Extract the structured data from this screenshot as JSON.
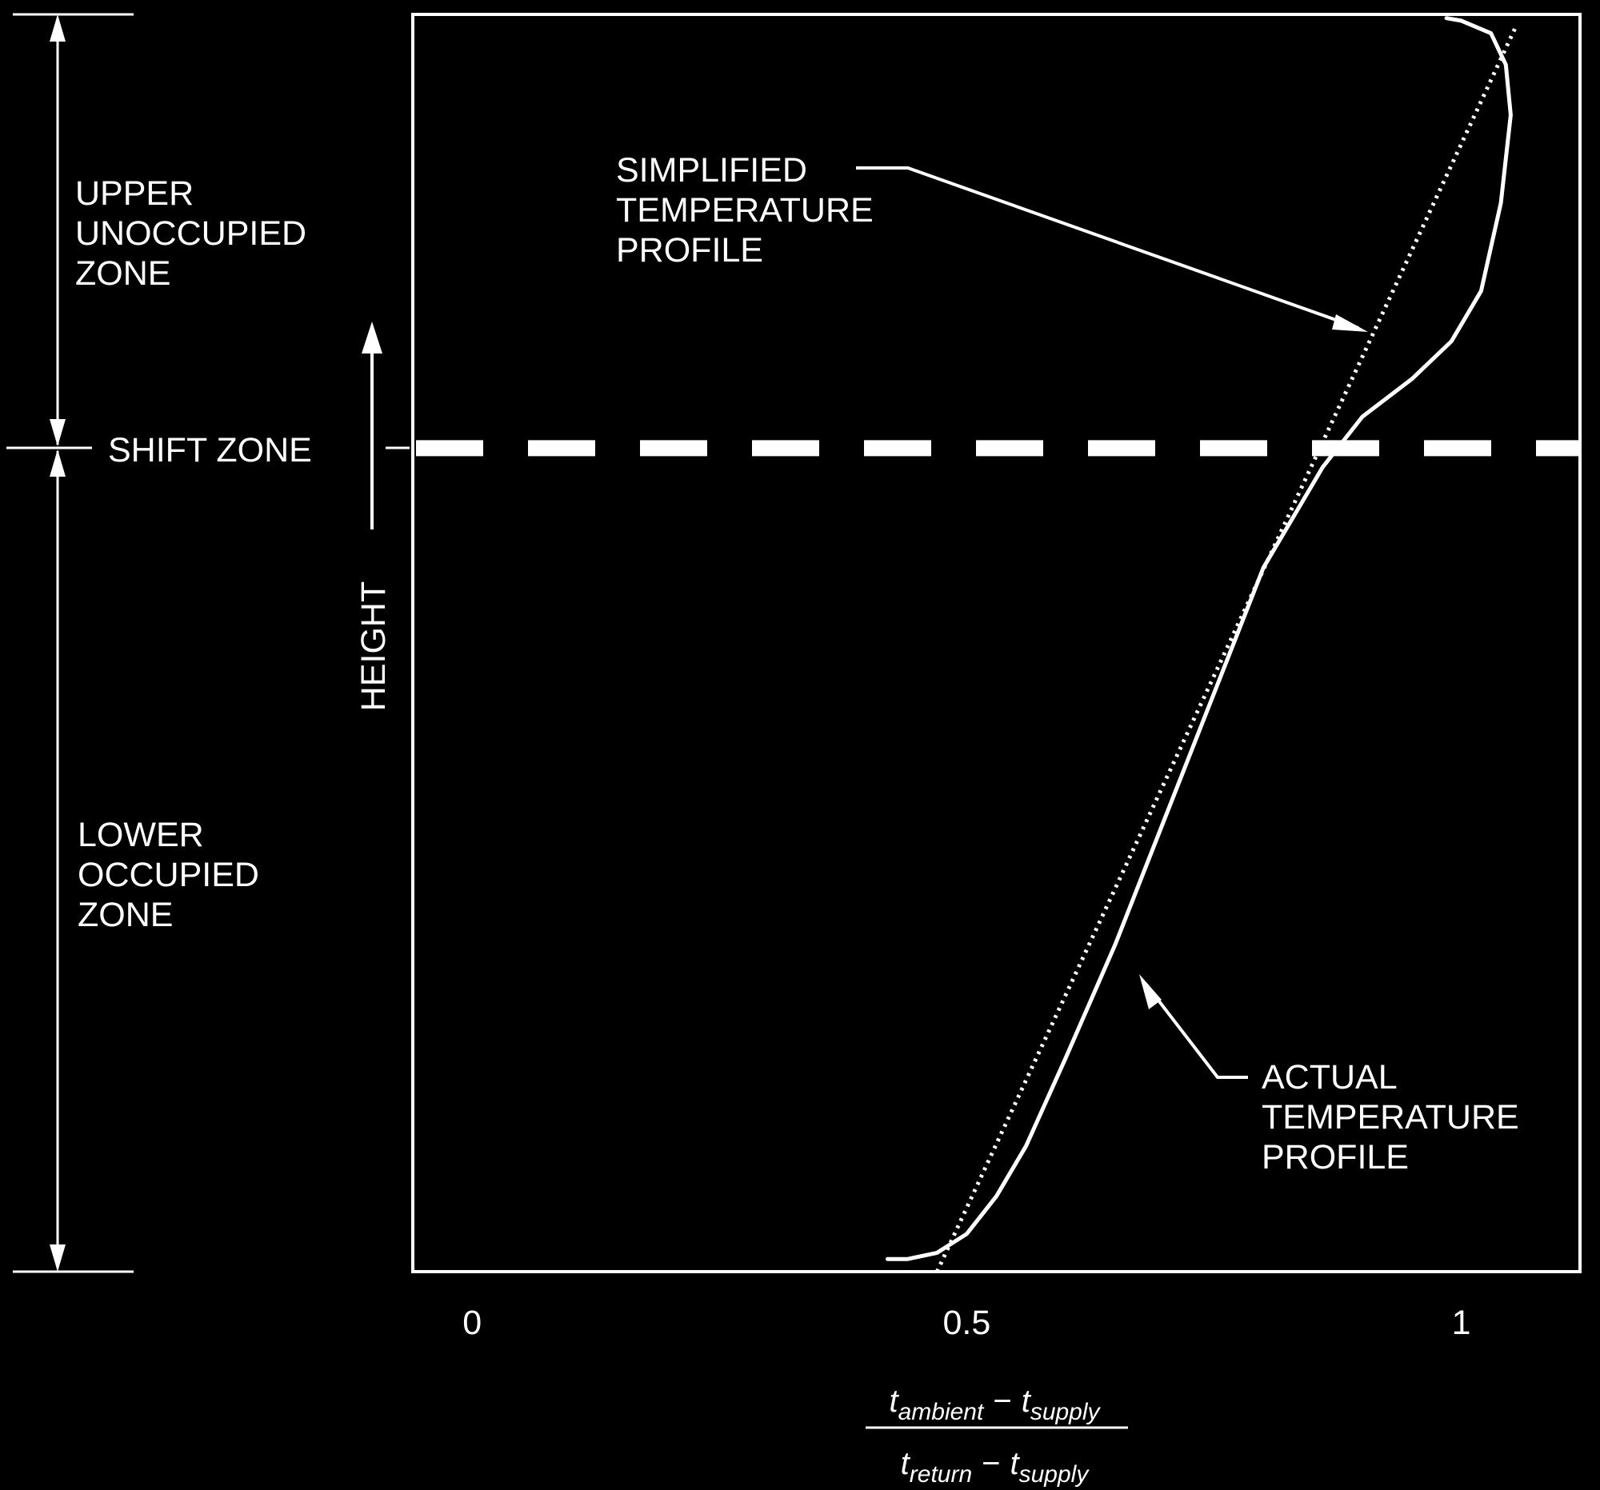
{
  "chart_data": {
    "type": "line",
    "xlabel": {
      "numerator": {
        "t1": "t",
        "s1": "ambient",
        "op": "−",
        "t2": "t",
        "s2": "supply"
      },
      "denominator": {
        "t1": "t",
        "s1": "return",
        "op": "−",
        "t2": "t",
        "s2": "supply"
      }
    },
    "ylabel": "HEIGHT",
    "x_ticks": [
      "0",
      "0.5",
      "1"
    ],
    "xlim": [
      -0.06,
      1.12
    ],
    "ylim": [
      0,
      1
    ],
    "shift_zone_height": 0.655,
    "zones": {
      "upper": [
        "UPPER",
        "UNOCCUPIED",
        "ZONE"
      ],
      "shift": "SHIFT ZONE",
      "lower": [
        "LOWER",
        "OCCUPIED",
        "ZONE"
      ]
    },
    "annotations": {
      "simplified": [
        "SIMPLIFIED",
        "TEMPERATURE",
        "PROFILE"
      ],
      "actual": [
        "ACTUAL",
        "TEMPERATURE",
        "PROFILE"
      ]
    },
    "series": [
      {
        "name": "SIMPLIFIED TEMPERATURE PROFILE",
        "style": "dotted",
        "points": [
          [
            0.47,
            0.0
          ],
          [
            1.055,
            0.99
          ]
        ]
      },
      {
        "name": "ACTUAL TEMPERATURE PROFILE",
        "style": "solid",
        "points": [
          [
            0.42,
            0.01
          ],
          [
            0.44,
            0.01
          ],
          [
            0.47,
            0.015
          ],
          [
            0.5,
            0.03
          ],
          [
            0.53,
            0.06
          ],
          [
            0.56,
            0.1
          ],
          [
            0.6,
            0.17
          ],
          [
            0.65,
            0.26
          ],
          [
            0.7,
            0.36
          ],
          [
            0.75,
            0.46
          ],
          [
            0.8,
            0.56
          ],
          [
            0.83,
            0.6
          ],
          [
            0.86,
            0.64
          ],
          [
            0.9,
            0.68
          ],
          [
            0.95,
            0.71
          ],
          [
            0.99,
            0.74
          ],
          [
            1.02,
            0.78
          ],
          [
            1.04,
            0.85
          ],
          [
            1.05,
            0.92
          ],
          [
            1.045,
            0.96
          ],
          [
            1.03,
            0.985
          ],
          [
            1.0,
            0.995
          ],
          [
            0.985,
            0.997
          ]
        ]
      }
    ],
    "colors": {
      "background": "#000000",
      "foreground": "#ffffff"
    }
  }
}
